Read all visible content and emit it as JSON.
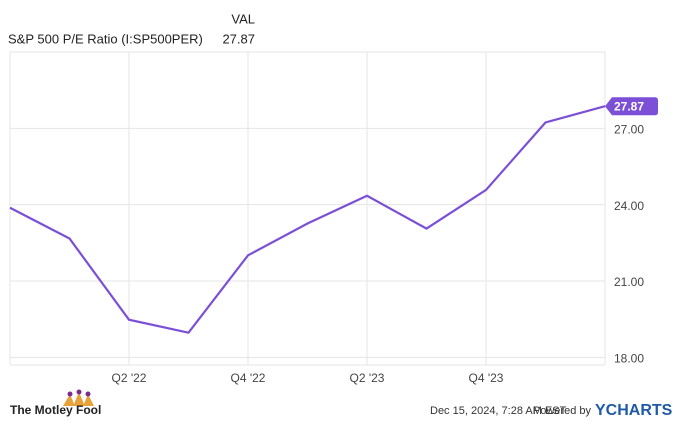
{
  "chart_data": {
    "type": "line",
    "value_header": "VAL",
    "categories": [
      null,
      null,
      "Q2 '22",
      null,
      "Q4 '22",
      null,
      "Q2 '23",
      null,
      "Q4 '23",
      null,
      null
    ],
    "series": [
      {
        "name": "S&P 500 P/E Ratio (I:SP500PER)",
        "color": "#7b4fd6",
        "values": [
          23.88,
          22.67,
          19.48,
          18.97,
          22.01,
          23.26,
          24.35,
          23.06,
          24.58,
          27.23,
          27.87
        ]
      }
    ],
    "ylim": [
      17.7,
      30.0
    ],
    "yticks": [
      {
        "value": 18,
        "label": "18.00"
      },
      {
        "value": 21,
        "label": "21.00"
      },
      {
        "value": 24,
        "label": "24.00"
      },
      {
        "value": 27,
        "label": "27.00"
      }
    ],
    "grid": true
  },
  "footer": {
    "logo": "The Motley Fool",
    "timestamp": "Dec 15, 2024, 7:28 AM EST",
    "powered_by": "Powered by",
    "brand": "YCHARTS"
  }
}
